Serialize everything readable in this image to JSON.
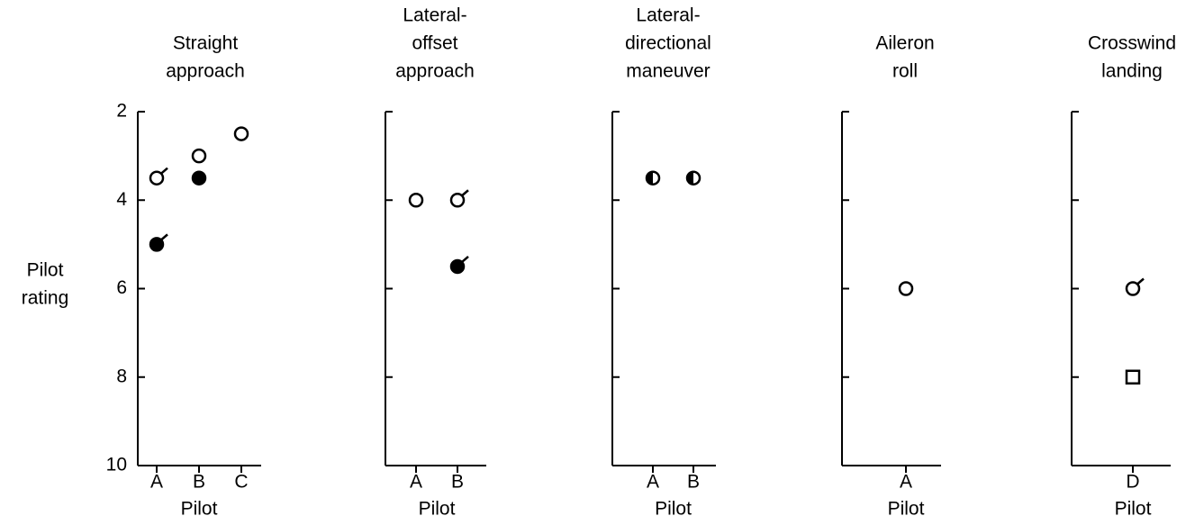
{
  "chart_data": [
    {
      "type": "scatter",
      "title": [
        "Straight",
        "approach"
      ],
      "ylabel": [
        "Pilot",
        "rating"
      ],
      "xlabel": "Pilot",
      "categories": [
        "A",
        "B",
        "C"
      ],
      "ylim": [
        2,
        10
      ],
      "y_inverted": true,
      "yticks": [
        2,
        4,
        6,
        8,
        10
      ],
      "ytick_labels": true,
      "series": [
        {
          "marker": "open",
          "flagged": true,
          "color": "#000000",
          "values": [
            3.5,
            null,
            null
          ]
        },
        {
          "marker": "filled",
          "flagged": true,
          "color": "#000000",
          "values": [
            5,
            null,
            null
          ]
        },
        {
          "marker": "open",
          "flagged": false,
          "color": "#000000",
          "values": [
            null,
            3,
            2.5
          ]
        },
        {
          "marker": "filled",
          "flagged": false,
          "color": "#000000",
          "values": [
            null,
            3.5,
            null
          ]
        }
      ]
    },
    {
      "type": "scatter",
      "title": [
        "Lateral-",
        "offset",
        "approach"
      ],
      "xlabel": "Pilot",
      "categories": [
        "A",
        "B"
      ],
      "ylim": [
        2,
        10
      ],
      "y_inverted": true,
      "yticks": [
        2,
        4,
        6,
        8
      ],
      "ytick_labels": false,
      "series": [
        {
          "marker": "open",
          "flagged": false,
          "color": "#000000",
          "values": [
            4,
            null
          ]
        },
        {
          "marker": "open",
          "flagged": true,
          "color": "#000000",
          "values": [
            null,
            4
          ]
        },
        {
          "marker": "filled",
          "flagged": true,
          "color": "#000000",
          "values": [
            null,
            5.5
          ]
        }
      ]
    },
    {
      "type": "scatter",
      "title": [
        "Lateral-",
        "directional",
        "maneuver"
      ],
      "xlabel": "Pilot",
      "categories": [
        "A",
        "B"
      ],
      "ylim": [
        2,
        10
      ],
      "y_inverted": true,
      "yticks": [
        2,
        4,
        6,
        8
      ],
      "ytick_labels": false,
      "series": [
        {
          "marker": "half",
          "flagged": false,
          "color": "#000000",
          "values": [
            3.5,
            3.5
          ]
        }
      ]
    },
    {
      "type": "scatter",
      "title": [
        "Aileron",
        "roll"
      ],
      "xlabel": "Pilot",
      "categories": [
        "A"
      ],
      "ylim": [
        2,
        10
      ],
      "y_inverted": true,
      "yticks": [
        2,
        4,
        6,
        8
      ],
      "ytick_labels": false,
      "series": [
        {
          "marker": "open",
          "flagged": false,
          "color": "#000000",
          "values": [
            6
          ]
        }
      ]
    },
    {
      "type": "scatter",
      "title": [
        "Crosswind",
        "landing"
      ],
      "xlabel": "Pilot",
      "categories": [
        "D"
      ],
      "ylim": [
        2,
        10
      ],
      "y_inverted": true,
      "yticks": [
        2,
        4,
        6,
        8
      ],
      "ytick_labels": false,
      "series": [
        {
          "marker": "open",
          "flagged": true,
          "color": "#000000",
          "values": [
            6
          ]
        },
        {
          "marker": "square",
          "flagged": false,
          "color": "#000000",
          "values": [
            8
          ]
        }
      ]
    }
  ]
}
